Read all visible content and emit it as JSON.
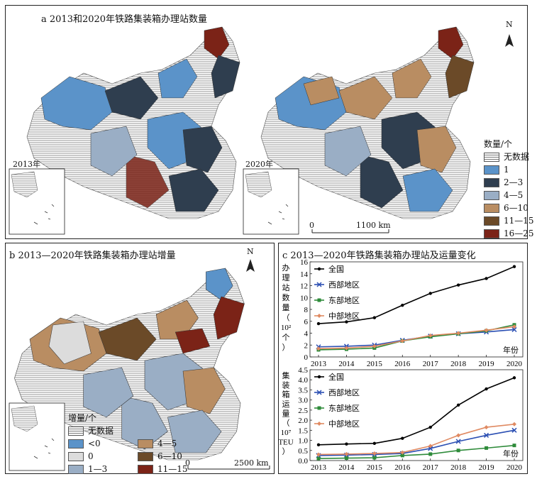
{
  "panel_a": {
    "title": "a 2013和2020年铁路集装箱办理站数量",
    "map_left_label": "2013年",
    "map_right_label": "2020年",
    "north_label": "N",
    "scale_zero": "0",
    "scale_label": "1100 km",
    "legend_title": "数量/个",
    "legend": [
      {
        "label": "无数据",
        "color": "hatch"
      },
      {
        "label": "1",
        "color": "#5b93c9"
      },
      {
        "label": "2—3",
        "color": "#2f3e4f"
      },
      {
        "label": "4—5",
        "color": "#9aaec5"
      },
      {
        "label": "6—10",
        "color": "#b98d62"
      },
      {
        "label": "11—15",
        "color": "#6b4a28"
      },
      {
        "label": "16—25",
        "color": "#7b2317"
      }
    ]
  },
  "panel_b": {
    "title": "b 2013—2020年铁路集装箱办理站增量",
    "north_label": "N",
    "scale_zero": "0",
    "scale_label": "2500 km",
    "legend_title": "增量/个",
    "legend": [
      {
        "label": "无数据",
        "color": "hatch"
      },
      {
        "label": "<0",
        "color": "#5b93c9"
      },
      {
        "label": "0",
        "color": "#dcdcdc"
      },
      {
        "label": "1—3",
        "color": "#9aaec5"
      },
      {
        "label": "4—5",
        "color": "#b98d62"
      },
      {
        "label": "6—10",
        "color": "#6b4a28"
      },
      {
        "label": "11—15",
        "color": "#7b2317"
      }
    ]
  },
  "panel_c": {
    "title": "c 2013—2020年铁路集装箱办理站及运量变化"
  },
  "chart_data": [
    {
      "type": "line",
      "title": "办理站数量",
      "ylabel": "办理站数量（10²个）",
      "xlabel": "年份",
      "x": [
        "2013",
        "2014",
        "2015",
        "2016",
        "2017",
        "2018",
        "2019",
        "2020"
      ],
      "ylim": [
        0,
        16
      ],
      "yticks": [
        0,
        2,
        4,
        6,
        8,
        10,
        12,
        14,
        16
      ],
      "series": [
        {
          "name": "全国",
          "color": "#000000",
          "marker": "dot",
          "values": [
            5.6,
            5.9,
            6.6,
            8.7,
            10.7,
            12.1,
            13.2,
            15.2
          ]
        },
        {
          "name": "西部地区",
          "color": "#2b4fb3",
          "marker": "x",
          "values": [
            1.7,
            1.8,
            2.0,
            2.8,
            3.5,
            3.9,
            4.2,
            4.6
          ]
        },
        {
          "name": "东部地区",
          "color": "#2e8b3a",
          "marker": "square",
          "values": [
            1.2,
            1.3,
            1.5,
            2.7,
            3.4,
            3.9,
            4.4,
            5.4
          ]
        },
        {
          "name": "中部地区",
          "color": "#e08a62",
          "marker": "diamond",
          "values": [
            1.4,
            1.5,
            1.8,
            2.7,
            3.6,
            4.0,
            4.5,
            5.1
          ]
        }
      ]
    },
    {
      "type": "line",
      "title": "集装箱运量",
      "ylabel": "集装箱运量（10⁷TEU）",
      "xlabel": "年份",
      "x": [
        "2013",
        "2014",
        "2015",
        "2016",
        "2017",
        "2018",
        "2019",
        "2020"
      ],
      "ylim": [
        0,
        4.5
      ],
      "yticks": [
        0,
        0.5,
        1.0,
        1.5,
        2.0,
        2.5,
        3.0,
        3.5,
        4.0,
        4.5
      ],
      "series": [
        {
          "name": "全国",
          "color": "#000000",
          "marker": "dot",
          "values": [
            0.78,
            0.82,
            0.85,
            1.1,
            1.65,
            2.75,
            3.55,
            4.1
          ]
        },
        {
          "name": "西部地区",
          "color": "#2b4fb3",
          "marker": "x",
          "values": [
            0.25,
            0.27,
            0.3,
            0.35,
            0.6,
            0.95,
            1.25,
            1.5
          ]
        },
        {
          "name": "东部地区",
          "color": "#2e8b3a",
          "marker": "square",
          "values": [
            0.1,
            0.12,
            0.14,
            0.25,
            0.32,
            0.5,
            0.62,
            0.75
          ]
        },
        {
          "name": "中部地区",
          "color": "#e08a62",
          "marker": "diamond",
          "values": [
            0.3,
            0.32,
            0.35,
            0.4,
            0.72,
            1.25,
            1.65,
            1.8
          ]
        }
      ]
    }
  ],
  "chart_labels": {
    "top_ylabel_chars": [
      "办",
      "理",
      "站",
      "数",
      "量",
      "（",
      "10²",
      "个",
      "）"
    ],
    "bottom_ylabel_chars": [
      "集",
      "装",
      "箱",
      "运",
      "量",
      "（",
      "10⁷",
      "TEU",
      "）"
    ],
    "top_xlabel": "年份",
    "bottom_xlabel": "年份"
  }
}
